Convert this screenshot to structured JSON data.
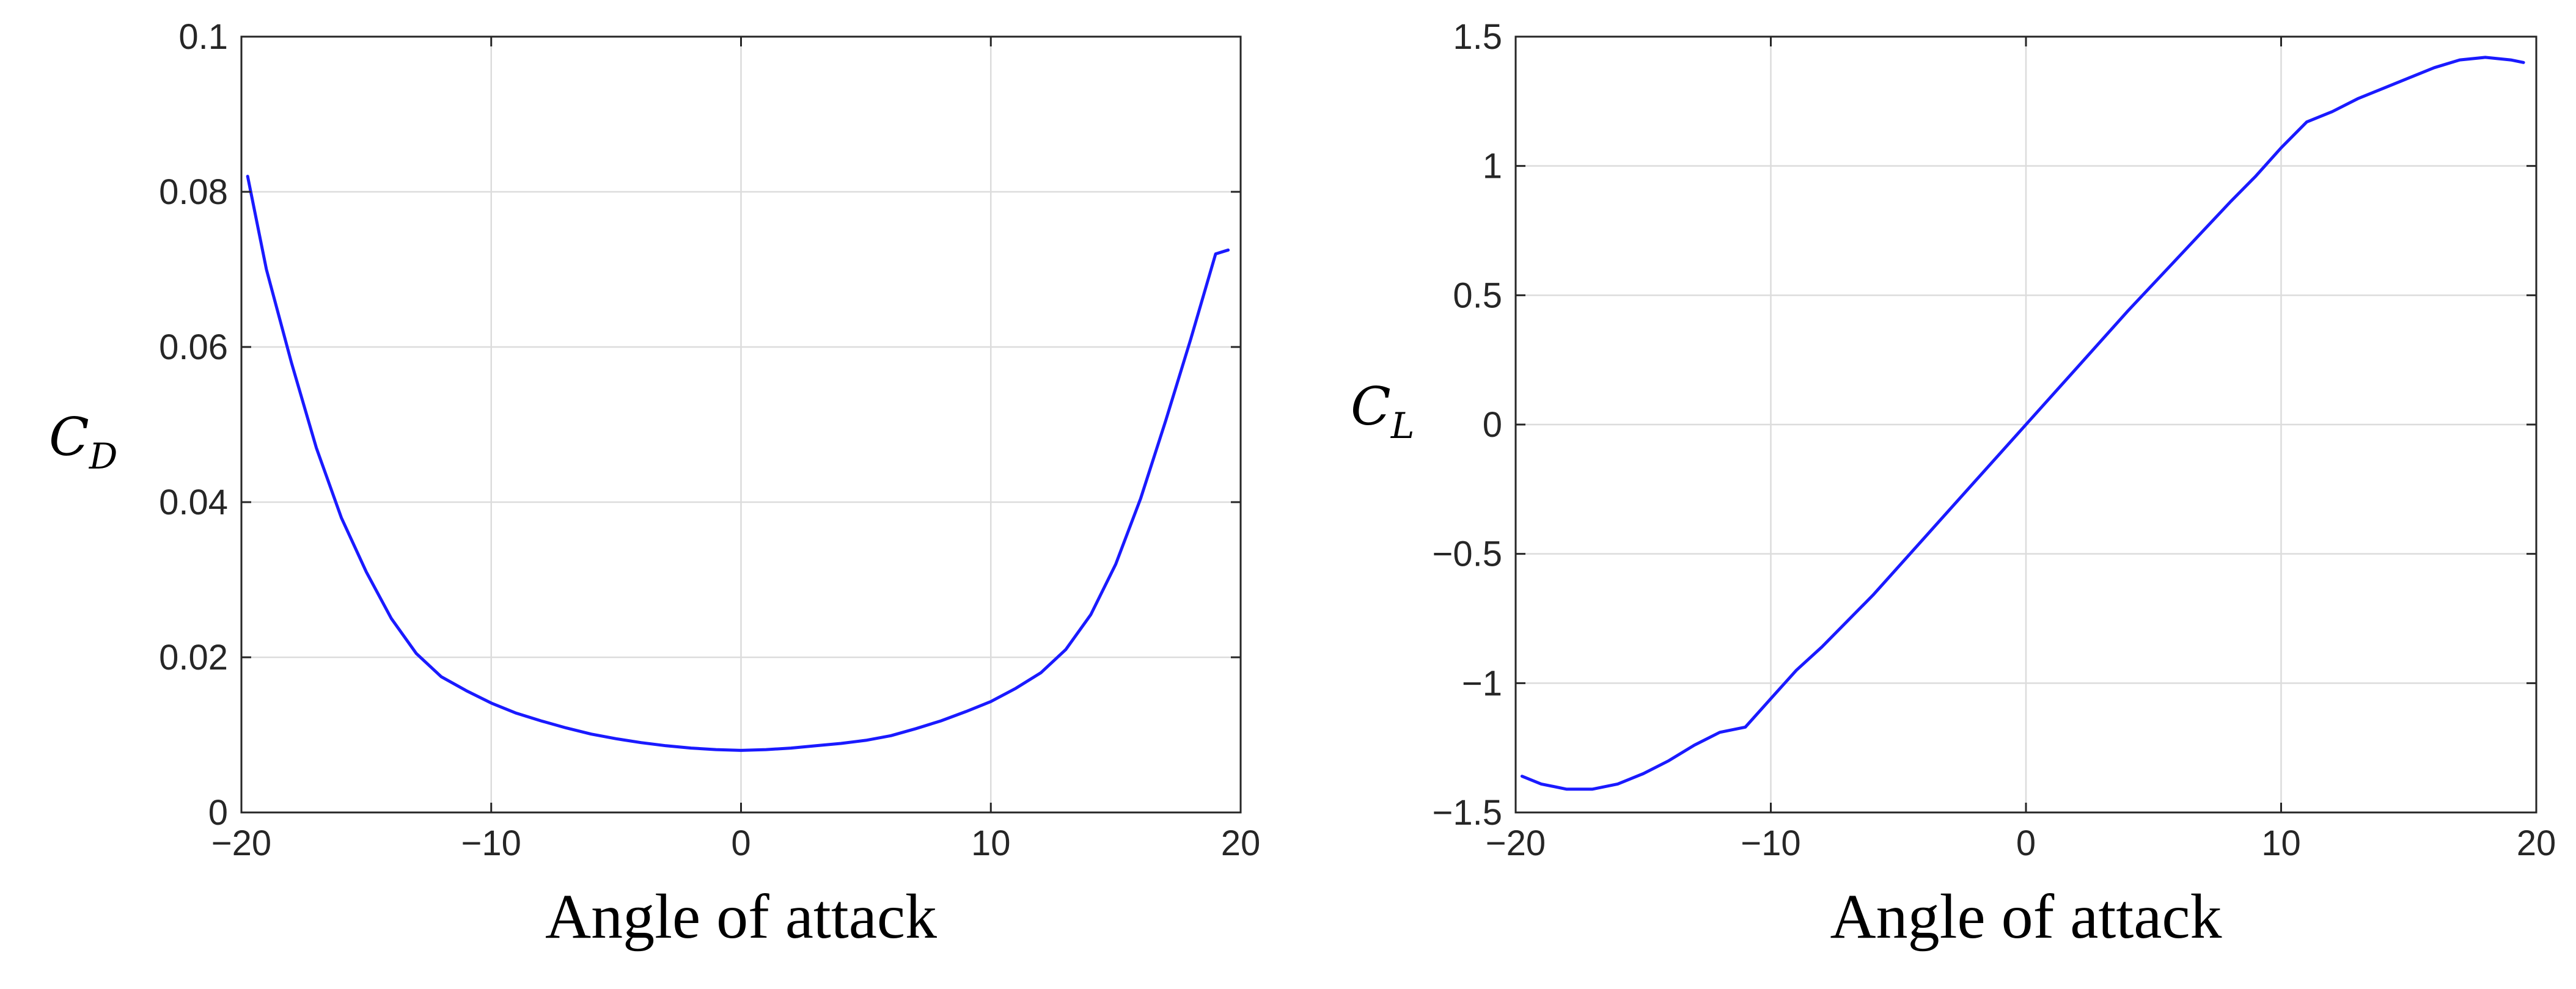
{
  "chart_data": [
    {
      "type": "line",
      "xlabel": "Angle of attack",
      "ylabel": "C_D",
      "ylabel_parts": {
        "main": "C",
        "sub": "D"
      },
      "xlim": [
        -20,
        20
      ],
      "ylim": [
        0,
        0.1
      ],
      "xticks": [
        -20,
        -10,
        0,
        10,
        20
      ],
      "xtick_labels": [
        "−20",
        "−10",
        "0",
        "10",
        "20"
      ],
      "yticks": [
        0,
        0.02,
        0.04,
        0.06,
        0.08,
        0.1
      ],
      "ytick_labels": [
        "0",
        "0.02",
        "0.04",
        "0.06",
        "0.08",
        "0.1"
      ],
      "grid": true,
      "series": [
        {
          "color": "#1a1aff",
          "x": [
            -19.75,
            -19,
            -18,
            -17,
            -16,
            -15,
            -14,
            -13,
            -12,
            -11,
            -10,
            -9,
            -8,
            -7,
            -6,
            -5,
            -4,
            -3,
            -2,
            -1,
            0,
            1,
            2,
            3,
            4,
            5,
            6,
            7,
            8,
            9,
            10,
            11,
            12,
            13,
            14,
            15,
            16,
            17,
            18,
            19,
            19.5
          ],
          "y": [
            0.082,
            0.07,
            0.058,
            0.047,
            0.038,
            0.031,
            0.025,
            0.0205,
            0.0175,
            0.0157,
            0.0141,
            0.0128,
            0.0118,
            0.0109,
            0.0101,
            0.0095,
            0.009,
            0.0086,
            0.0083,
            0.0081,
            0.008,
            0.0081,
            0.0083,
            0.0086,
            0.0089,
            0.0093,
            0.0099,
            0.0108,
            0.0118,
            0.013,
            0.0143,
            0.016,
            0.018,
            0.021,
            0.0255,
            0.032,
            0.0405,
            0.0505,
            0.061,
            0.072,
            0.0725
          ]
        }
      ]
    },
    {
      "type": "line",
      "xlabel": "Angle of attack",
      "ylabel": "C_L",
      "ylabel_parts": {
        "main": "C",
        "sub": "L"
      },
      "xlim": [
        -20,
        20
      ],
      "ylim": [
        -1.5,
        1.5
      ],
      "xticks": [
        -20,
        -10,
        0,
        10,
        20
      ],
      "xtick_labels": [
        "−20",
        "−10",
        "0",
        "10",
        "20"
      ],
      "yticks": [
        -1.5,
        -1,
        -0.5,
        0,
        0.5,
        1,
        1.5
      ],
      "ytick_labels": [
        "−1.5",
        "−1",
        "−0.5",
        "0",
        "0.5",
        "1",
        "1.5"
      ],
      "grid": true,
      "series": [
        {
          "color": "#1a1aff",
          "x": [
            -19.75,
            -19,
            -18,
            -17,
            -16,
            -15,
            -14,
            -13,
            -12,
            -11,
            -10,
            -9,
            -8,
            -6,
            -4,
            -2,
            0,
            2,
            4,
            6,
            8,
            9,
            10,
            11,
            12,
            13,
            14,
            15,
            16,
            17,
            18,
            19,
            19.5
          ],
          "y": [
            -1.36,
            -1.39,
            -1.41,
            -1.41,
            -1.39,
            -1.35,
            -1.3,
            -1.24,
            -1.19,
            -1.17,
            -1.06,
            -0.95,
            -0.86,
            -0.66,
            -0.44,
            -0.22,
            0.0,
            0.22,
            0.44,
            0.65,
            0.86,
            0.96,
            1.07,
            1.17,
            1.21,
            1.26,
            1.3,
            1.34,
            1.38,
            1.41,
            1.42,
            1.41,
            1.4
          ]
        }
      ]
    }
  ]
}
